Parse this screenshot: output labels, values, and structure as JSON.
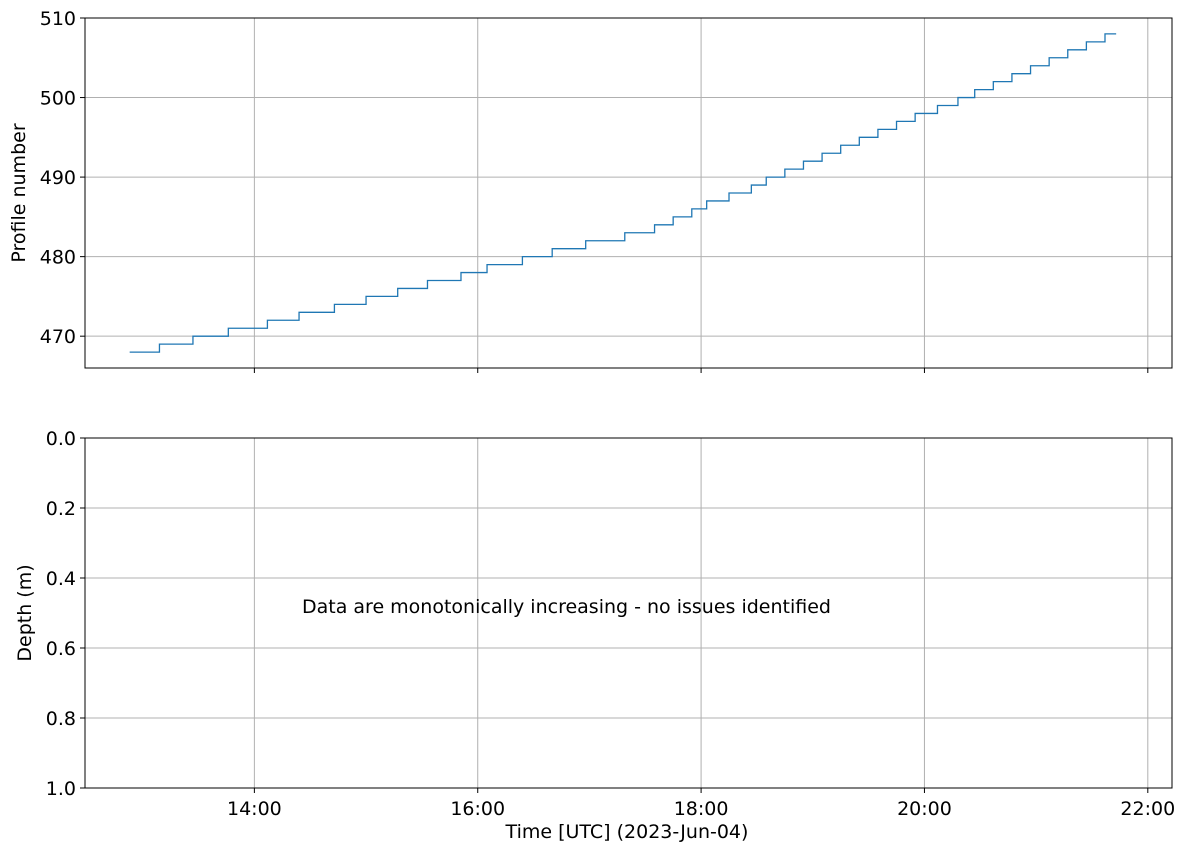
{
  "chart_data": [
    {
      "type": "line",
      "step": true,
      "xlabel": "",
      "ylabel": "Profile number",
      "ylim": [
        466,
        510
      ],
      "yticks": [
        "470",
        "480",
        "490",
        "500",
        "510"
      ],
      "xticks": [
        "14:00",
        "16:00",
        "18:00",
        "20:00",
        "22:00"
      ],
      "xtick_labels_shown": false,
      "grid": true,
      "line_color": "#1f77b4",
      "series": [
        {
          "x": [
            "12:53",
            "13:09",
            "13:27",
            "13:46",
            "14:07",
            "14:24",
            "14:43",
            "15:00",
            "15:17",
            "15:33",
            "15:51",
            "16:05",
            "16:24",
            "16:40",
            "16:58",
            "17:19",
            "17:35",
            "17:45",
            "17:55",
            "18:03",
            "18:15",
            "18:27",
            "18:35",
            "18:45",
            "18:55",
            "19:05",
            "19:15",
            "19:25",
            "19:35",
            "19:45",
            "19:55",
            "20:07",
            "20:18",
            "20:27",
            "20:37",
            "20:47",
            "20:57",
            "21:07",
            "21:17",
            "21:27",
            "21:37",
            "21:43"
          ],
          "values": [
            468,
            469,
            470,
            471,
            472,
            473,
            474,
            475,
            476,
            477,
            478,
            479,
            480,
            481,
            482,
            483,
            484,
            485,
            486,
            487,
            488,
            489,
            490,
            491,
            492,
            493,
            494,
            495,
            496,
            497,
            498,
            499,
            500,
            501,
            502,
            503,
            504,
            505,
            506,
            507,
            508,
            508
          ]
        }
      ]
    },
    {
      "type": "line",
      "xlabel": "Time [UTC] (2023-Jun-04)",
      "ylabel": "Depth (m)",
      "ylim": [
        1.0,
        0.0
      ],
      "yticks": [
        "0.0",
        "0.2",
        "0.4",
        "0.6",
        "0.8",
        "1.0"
      ],
      "xticks": [
        "14:00",
        "16:00",
        "18:00",
        "20:00",
        "22:00"
      ],
      "grid": true,
      "annotation": "Data are monotonically increasing - no issues identified"
    }
  ]
}
